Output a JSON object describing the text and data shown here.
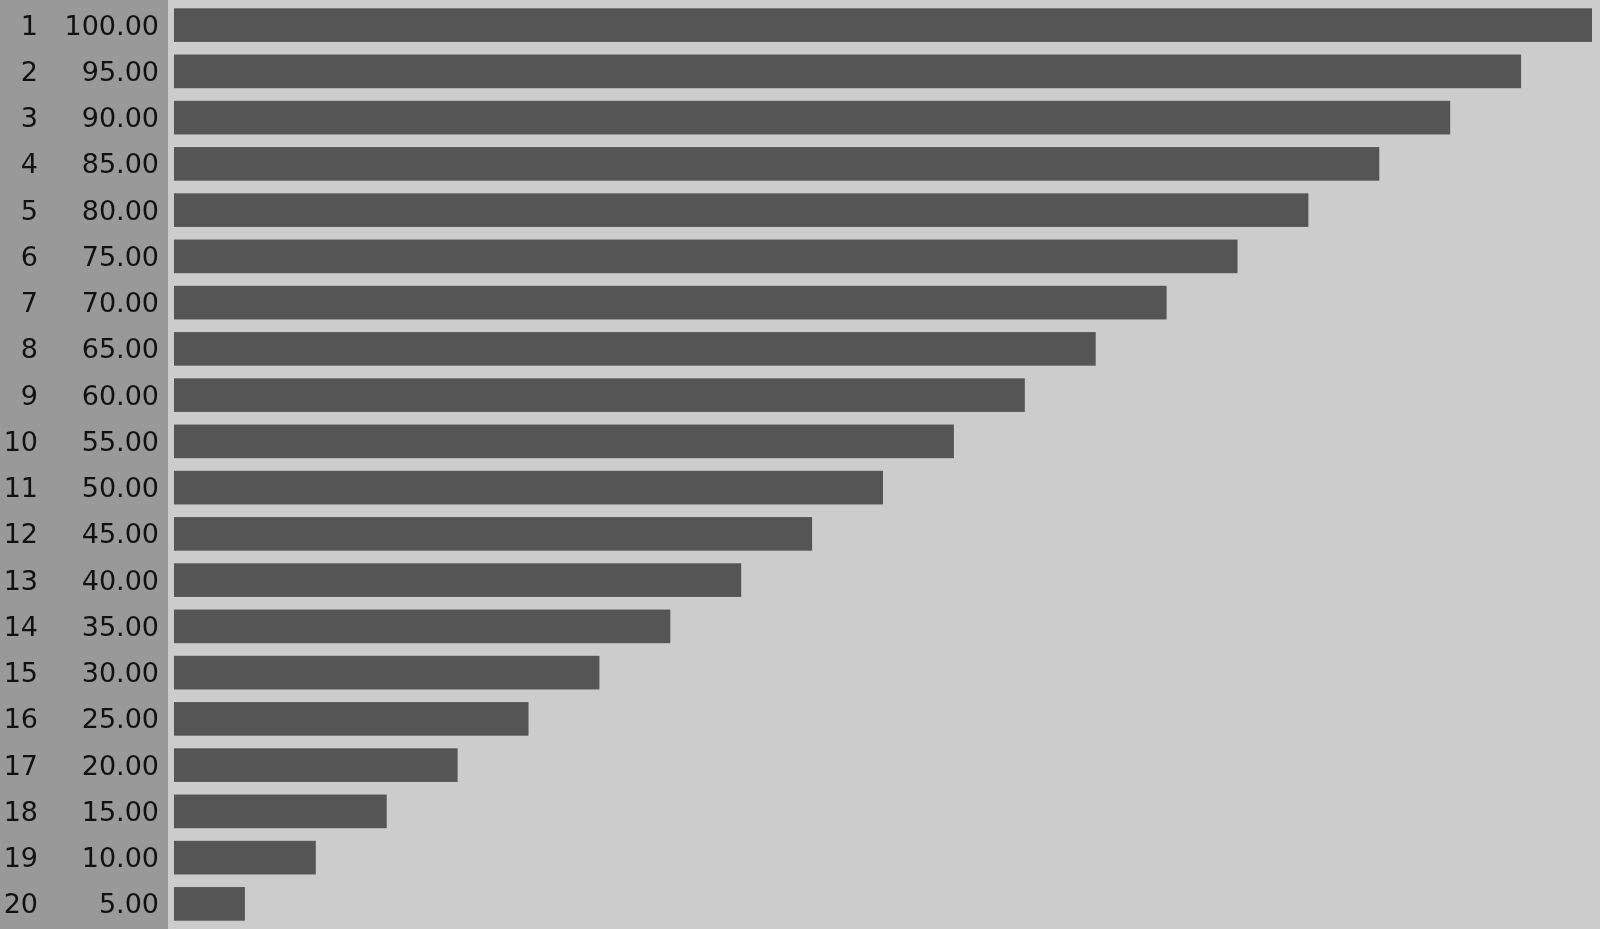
{
  "chart_data": {
    "type": "bar",
    "orientation": "horizontal",
    "categories": [
      "1",
      "2",
      "3",
      "4",
      "5",
      "6",
      "7",
      "8",
      "9",
      "10",
      "11",
      "12",
      "13",
      "14",
      "15",
      "16",
      "17",
      "18",
      "19",
      "20"
    ],
    "values": [
      100,
      95,
      90,
      85,
      80,
      75,
      70,
      65,
      60,
      55,
      50,
      45,
      40,
      35,
      30,
      25,
      20,
      15,
      10,
      5
    ],
    "value_labels": [
      "100.00",
      "95.00",
      "90.00",
      "85.00",
      "80.00",
      "75.00",
      "70.00",
      "65.00",
      "60.00",
      "55.00",
      "50.00",
      "45.00",
      "40.00",
      "35.00",
      "30.00",
      "25.00",
      "20.00",
      "15.00",
      "10.00",
      "5.00"
    ],
    "color": "#555555",
    "xlim": [
      0,
      100
    ],
    "tick_labels": "y"
  }
}
